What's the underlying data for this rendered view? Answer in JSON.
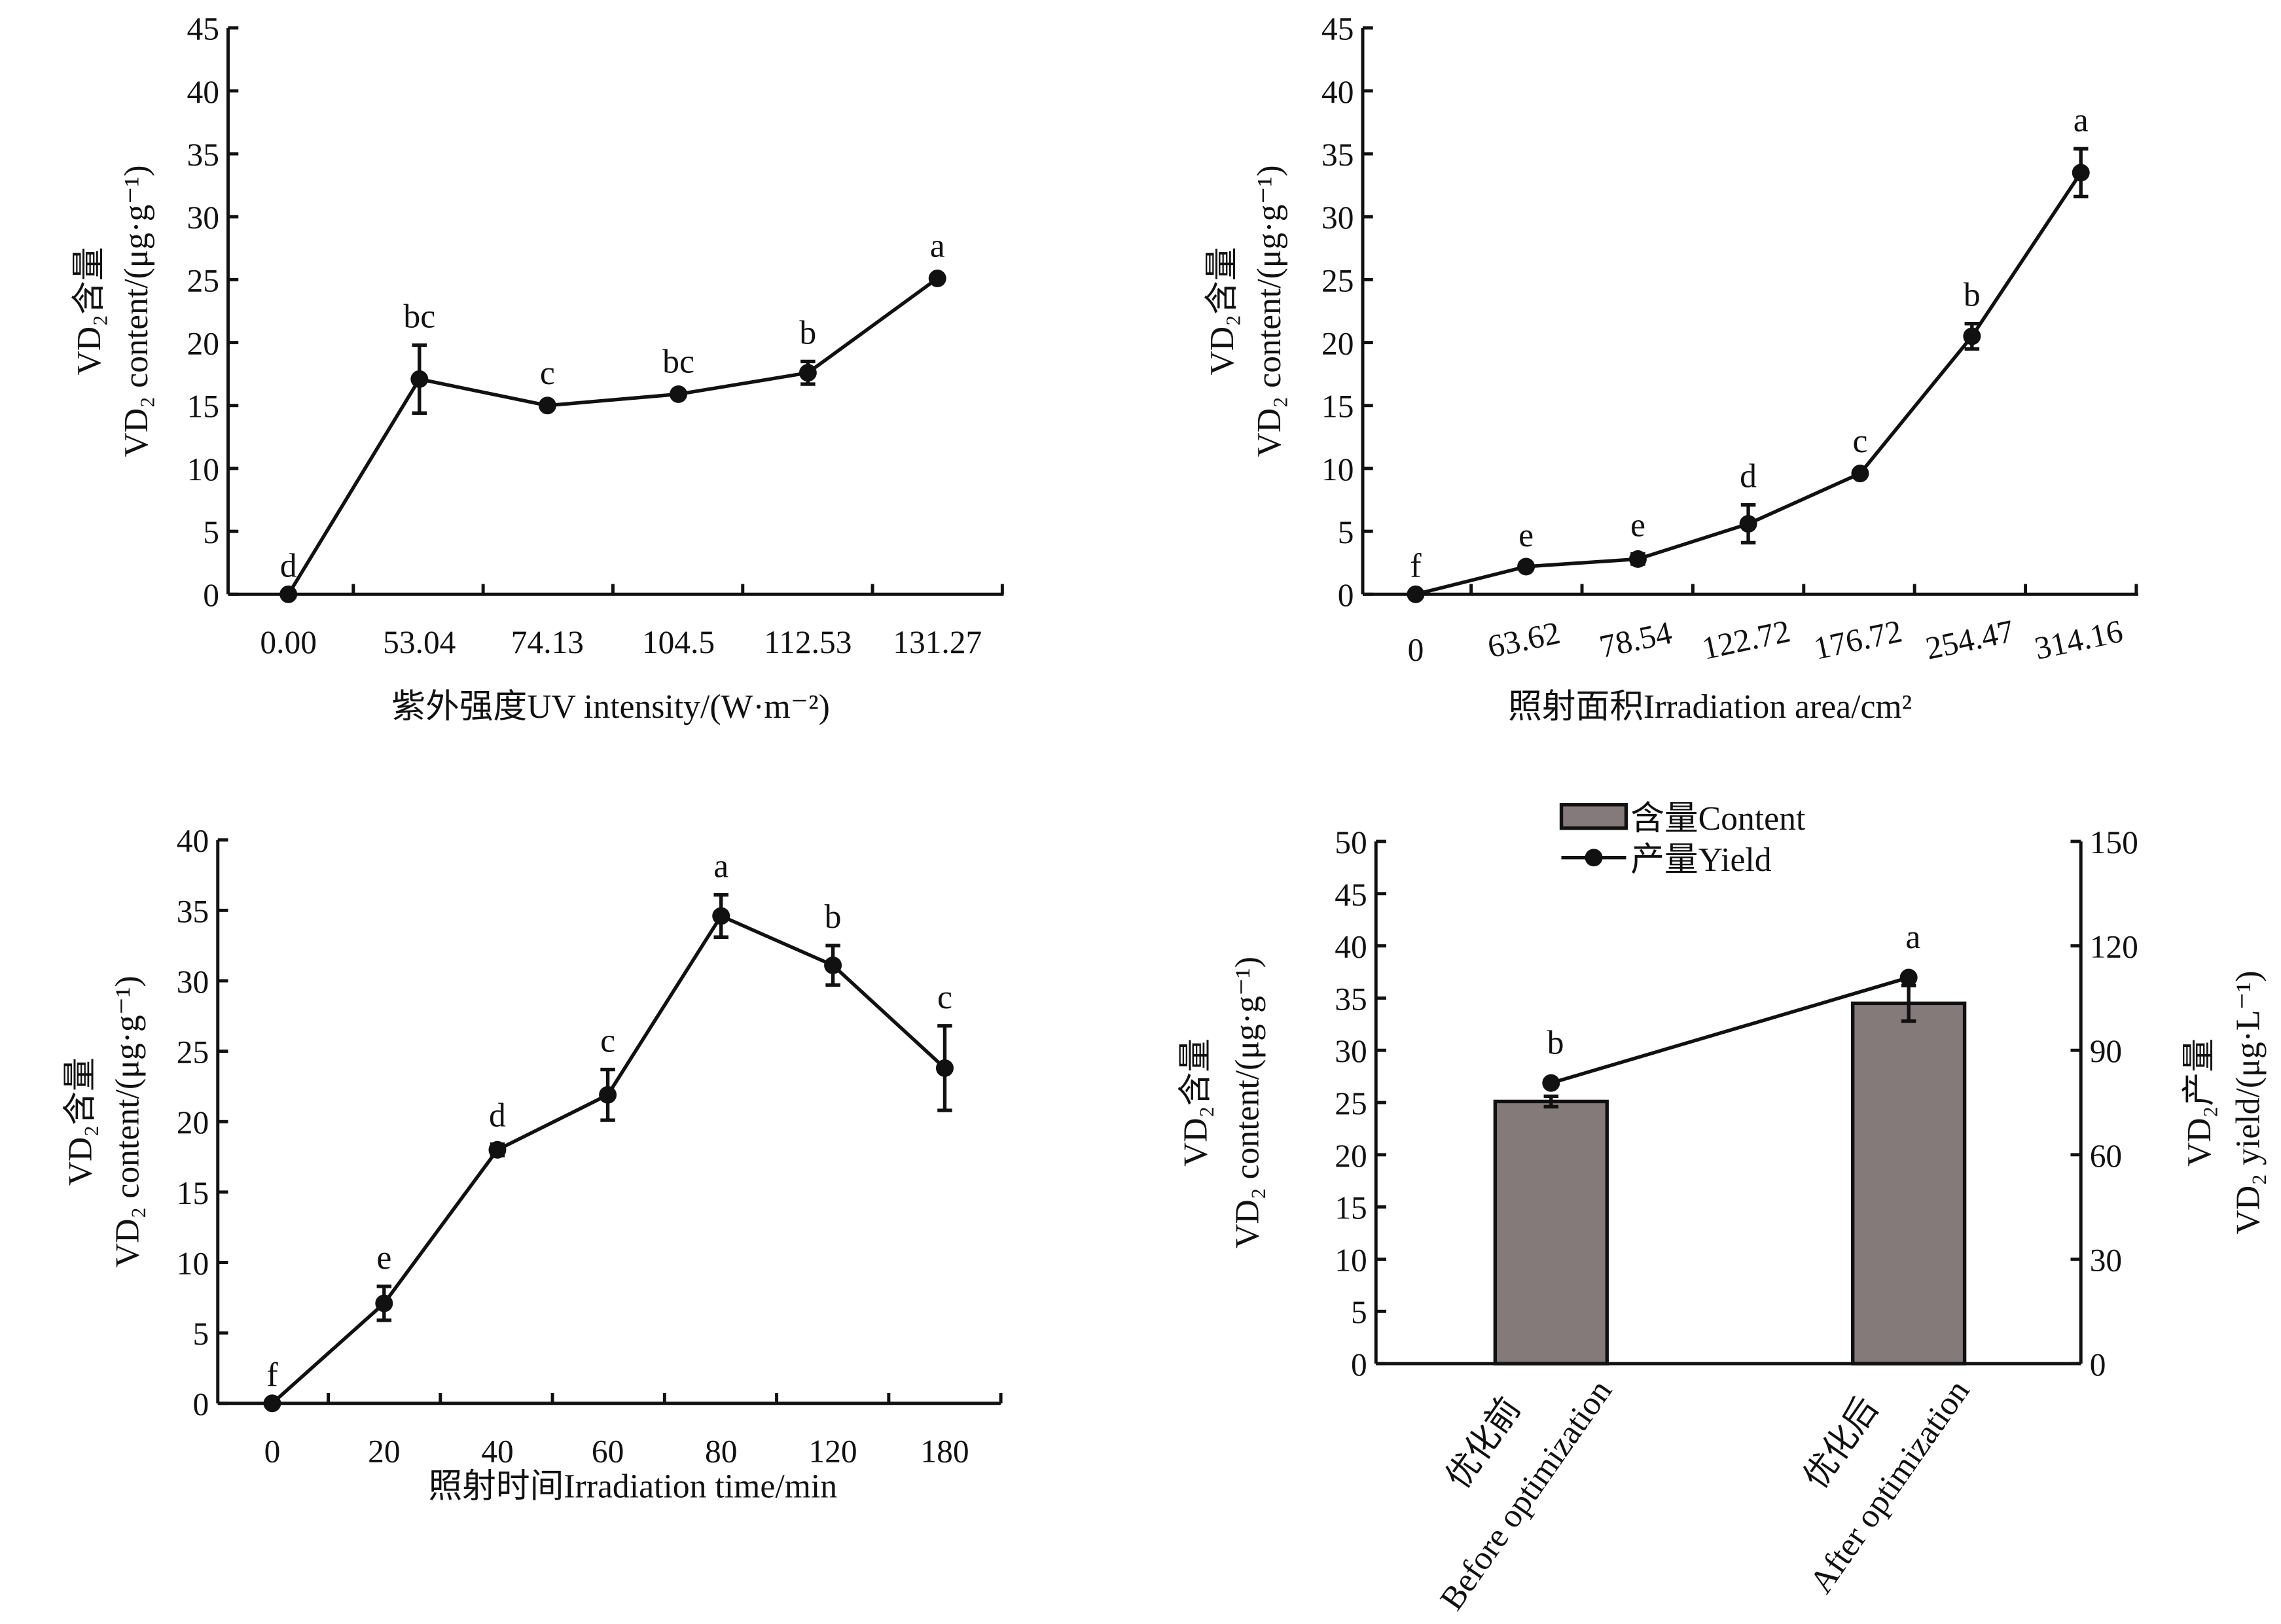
{
  "chart_data": [
    {
      "type": "line",
      "xlabel": "紫外强度UV intensity/(W·m⁻²)",
      "ylabel_cn": "VD₂含量",
      "ylabel": "VD₂ content/(μg·g⁻¹)",
      "ylim": [
        0,
        45
      ],
      "yticks": [
        0,
        5,
        10,
        15,
        20,
        25,
        30,
        35,
        40,
        45
      ],
      "categories": [
        "0.00",
        "53.04",
        "74.13",
        "104.5",
        "112.53",
        "131.27"
      ],
      "values": [
        0,
        17.1,
        15.0,
        15.9,
        17.6,
        25.1
      ],
      "errors": [
        0,
        2.7,
        0.3,
        0.3,
        0.9,
        0.3
      ],
      "letters": [
        "d",
        "bc",
        "c",
        "bc",
        "b",
        "a"
      ]
    },
    {
      "type": "line",
      "xlabel": "照射面积Irradiation area/cm²",
      "ylabel_cn": "VD₂含量",
      "ylabel": "VD₂ content/(μg·g⁻¹)",
      "ylim": [
        0,
        45
      ],
      "yticks": [
        0,
        5,
        10,
        15,
        20,
        25,
        30,
        35,
        40,
        45
      ],
      "categories": [
        "0",
        "63.62",
        "78.54",
        "122.72",
        "176.72",
        "254.47",
        "314.16"
      ],
      "values": [
        0,
        2.2,
        2.8,
        5.6,
        9.6,
        20.5,
        33.5
      ],
      "errors": [
        0,
        0.2,
        0.4,
        1.5,
        0.3,
        1.0,
        1.9
      ],
      "letters": [
        "f",
        "e",
        "e",
        "d",
        "c",
        "b",
        "a"
      ]
    },
    {
      "type": "line",
      "xlabel": "照射时间Irradiation time/min",
      "ylabel_cn": "VD₂含量",
      "ylabel": "VD₂ content/(μg·g⁻¹)",
      "ylim": [
        0,
        40
      ],
      "yticks": [
        0,
        5,
        10,
        15,
        20,
        25,
        30,
        35,
        40
      ],
      "categories": [
        "0",
        "20",
        "40",
        "60",
        "80",
        "120",
        "180"
      ],
      "values": [
        0,
        7.1,
        18.0,
        21.9,
        34.6,
        31.1,
        23.8
      ],
      "errors": [
        0,
        1.2,
        0.4,
        1.8,
        1.5,
        1.4,
        3.0
      ],
      "letters": [
        "f",
        "e",
        "d",
        "c",
        "a",
        "b",
        "c"
      ]
    },
    {
      "type": "bar",
      "ylabel_cn": "VD₂含量",
      "ylabel": "VD₂ content/(μg·g⁻¹)",
      "y2label_cn": "VD₂产量",
      "y2label": "VD₂ yield/(μg·L⁻¹)",
      "ylim": [
        0,
        50
      ],
      "yticks": [
        0,
        5,
        10,
        15,
        20,
        25,
        30,
        35,
        40,
        45,
        50
      ],
      "y2lim": [
        0,
        150
      ],
      "y2ticks": [
        0,
        30,
        60,
        90,
        120,
        150
      ],
      "categories": [
        {
          "cn": "优化前",
          "en": "Before optimization"
        },
        {
          "cn": "优化后",
          "en": "After optimization"
        }
      ],
      "series": [
        {
          "name": "含量Content",
          "type": "bar",
          "values": [
            25.1,
            34.5
          ],
          "errors": [
            0.5,
            1.7
          ],
          "color": "#857a7a"
        },
        {
          "name": "产量Yield",
          "type": "line",
          "axis": "right",
          "values": [
            80.6,
            110.9
          ]
        }
      ],
      "letters": [
        "b",
        "a"
      ],
      "legend": "top-center"
    }
  ]
}
